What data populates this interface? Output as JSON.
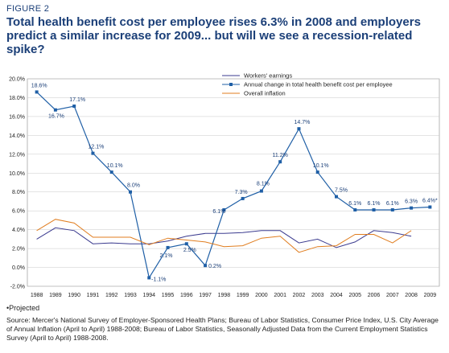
{
  "figure_label": "FIGURE 2",
  "title": "Total health benefit cost per employee rises 6.3% in 2008 and employers predict a similar increase for 2009... but will we see a recession-related spike?",
  "footnote": "•Projected",
  "source": "Source: Mercer's National Survey of Employer-Sponsored Health Plans; Bureau of Labor Statistics, Consumer Price Index, U.S. City Average of Annual Inflation (April to April) 1988-2008; Bureau of Labor Statistics, Seasonally Adjusted Data from the Current Employment Statistics Survey (April to April) 1988-2008.",
  "chart_data": {
    "type": "line",
    "x": [
      "1988",
      "1989",
      "1990",
      "1991",
      "1992",
      "1993",
      "1994",
      "1995",
      "1996",
      "1997",
      "1998",
      "1999",
      "2000",
      "2001",
      "2002",
      "2003",
      "2004",
      "2005",
      "2006",
      "2007",
      "2008",
      "2009"
    ],
    "y_ticks": [
      "20.0%",
      "18.0%",
      "16.0%",
      "14.0%",
      "12.0%",
      "10.0%",
      "8.0%",
      "6.0%",
      "4.0%",
      "2.0%",
      "0.0%",
      "-2.0%"
    ],
    "ylim": [
      -2,
      20
    ],
    "grid": true,
    "legend_position": "top-right",
    "series": [
      {
        "name": "Workers' earnings",
        "color": "#3b3b8f",
        "values": [
          3.0,
          4.2,
          3.9,
          2.5,
          2.6,
          2.5,
          2.5,
          2.8,
          3.3,
          3.6,
          3.6,
          3.7,
          3.9,
          3.9,
          2.6,
          3.0,
          2.1,
          2.7,
          3.9,
          3.7,
          3.3,
          null
        ]
      },
      {
        "name": "Annual change in total health benefit cost per employee",
        "color": "#1f5fa6",
        "markers": true,
        "values": [
          18.6,
          16.7,
          17.1,
          12.1,
          10.1,
          8.0,
          -1.1,
          2.1,
          2.5,
          0.2,
          6.1,
          7.3,
          8.1,
          11.2,
          14.7,
          10.1,
          7.5,
          6.1,
          6.1,
          6.1,
          6.3,
          6.4
        ],
        "labels": [
          "18.6%",
          "16.7%",
          "17.1%",
          "12.1%",
          "10.1%",
          "8.0%",
          "-1.1%",
          "2.1%",
          "2.5%",
          "0.2%",
          "6.1%",
          "7.3%",
          "8.1%",
          "11.2%",
          "14.7%",
          "10.1%",
          "7.5%",
          "6.1%",
          "6.1%",
          "6.1%",
          "6.3%",
          "6.4%*"
        ]
      },
      {
        "name": "Overall inflation",
        "color": "#e07d1f",
        "values": [
          3.9,
          5.1,
          4.7,
          3.2,
          3.2,
          3.2,
          2.4,
          3.1,
          2.9,
          2.7,
          2.2,
          2.3,
          3.1,
          3.3,
          1.6,
          2.2,
          2.3,
          3.5,
          3.5,
          2.6,
          3.9,
          null
        ]
      }
    ]
  }
}
